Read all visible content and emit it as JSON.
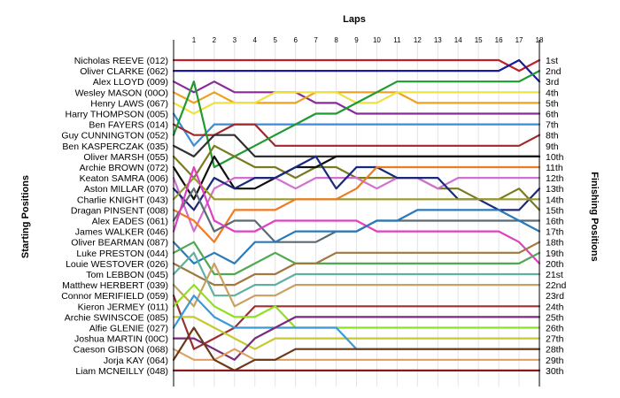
{
  "chart_data": {
    "type": "line",
    "title": "",
    "xlabel": "Laps",
    "ylabel_left": "Starting Positions",
    "ylabel_right": "Finishing Positions",
    "x_ticks": [
      "1",
      "2",
      "3",
      "4",
      "5",
      "6",
      "7",
      "8",
      "9",
      "10",
      "11",
      "12",
      "13",
      "14",
      "15",
      "16",
      "17",
      "18"
    ],
    "start_labels": [
      "Nicholas REEVE (012)",
      "Oliver CLARKE (062)",
      "Alex LLOYD (009)",
      "Wesley MASON (00O)",
      "Henry LAWS (067)",
      "Harry THOMPSON (005)",
      "Ben FAYERS (014)",
      "Guy CUNNINGTON (052)",
      "Ben KASPERCZAK (035)",
      "Oliver MARSH (055)",
      "Archie BROWN (072)",
      "Keaton SAMRA (006)",
      "Aston MILLAR (070)",
      "Charlie KNIGHT (043)",
      "Dragan PINSENT (008)",
      "Alex EADES (061)",
      "James WALKER (046)",
      "Oliver BEARMAN (087)",
      "Luke PRESTON (044)",
      "Louie WESTOVER (026)",
      "Tom LEBBON (045)",
      "Matthew HERBERT (039)",
      "Connor MERIFIELD (059)",
      "Kieron JERMEY (011)",
      "Archie SWINSCOE (085)",
      "Alfie GLENIE (027)",
      "Joshua MARTIN (00C)",
      "Caeson GIBSON (068)",
      "Jorja KAY (064)",
      "Liam MCNEILLY (048)"
    ],
    "finish_labels": [
      "1st",
      "2nd",
      "3rd",
      "4th",
      "5th",
      "6th",
      "7th",
      "8th",
      "9th",
      "10th",
      "11th",
      "12th",
      "13th",
      "14th",
      "15th",
      "16th",
      "17th",
      "18th",
      "19th",
      "20th",
      "21st",
      "22nd",
      "23rd",
      "24th",
      "25th",
      "26th",
      "27th",
      "28th",
      "29th",
      "30th"
    ],
    "series": [
      {
        "color": "#c0202a",
        "positions": [
          1,
          1,
          1,
          1,
          1,
          1,
          1,
          1,
          1,
          1,
          1,
          1,
          1,
          1,
          1,
          1,
          1,
          2,
          1
        ]
      },
      {
        "color": "#1a1a9a",
        "positions": [
          2,
          2,
          2,
          2,
          2,
          2,
          2,
          2,
          2,
          2,
          2,
          2,
          2,
          2,
          2,
          2,
          2,
          1,
          3
        ]
      },
      {
        "color": "#8a2a9a",
        "positions": [
          3,
          4,
          3,
          4,
          4,
          4,
          4,
          5,
          5,
          6,
          6,
          6,
          6,
          6,
          6,
          6,
          6,
          6,
          6
        ]
      },
      {
        "color": "#f0a020",
        "positions": [
          4,
          5,
          4,
          5,
          5,
          5,
          5,
          4,
          4,
          4,
          4,
          4,
          5,
          5,
          5,
          5,
          5,
          5,
          5
        ]
      },
      {
        "color": "#f0e040",
        "positions": [
          5,
          6,
          5,
          5,
          5,
          4,
          4,
          4,
          4,
          5,
          5,
          4,
          4,
          4,
          4,
          4,
          4,
          4,
          4
        ]
      },
      {
        "color": "#3a8cd8",
        "positions": [
          6,
          9,
          7,
          7,
          7,
          7,
          7,
          7,
          7,
          7,
          7,
          7,
          7,
          7,
          7,
          7,
          7,
          7,
          7
        ]
      },
      {
        "color": "#a0282a",
        "positions": [
          7,
          8,
          8,
          7,
          7,
          9,
          9,
          9,
          9,
          9,
          9,
          9,
          9,
          9,
          9,
          9,
          9,
          9,
          8
        ]
      },
      {
        "color": "#1e9a30",
        "positions": [
          8,
          3,
          11,
          10,
          9,
          8,
          7,
          6,
          6,
          5,
          4,
          3,
          3,
          3,
          3,
          3,
          3,
          3,
          2
        ]
      },
      {
        "color": "#303030",
        "positions": [
          9,
          10,
          8,
          8,
          10,
          10,
          10,
          10,
          10,
          10,
          10,
          10,
          10,
          10,
          10,
          10,
          10,
          10,
          10
        ]
      },
      {
        "color": "#7a7a22",
        "positions": [
          10,
          12,
          9,
          10,
          11,
          11,
          12,
          11,
          11,
          12,
          12,
          12,
          12,
          13,
          13,
          14,
          14,
          13,
          15
        ]
      },
      {
        "color": "#101010",
        "positions": [
          11,
          14,
          10,
          13,
          13,
          12,
          11,
          11,
          10,
          10,
          10,
          10,
          10,
          10,
          10,
          10,
          10,
          10,
          10
        ]
      },
      {
        "color": "#d070d0",
        "positions": [
          12,
          17,
          13,
          12,
          12,
          12,
          13,
          12,
          12,
          12,
          13,
          12,
          12,
          13,
          12,
          12,
          12,
          12,
          12
        ]
      },
      {
        "color": "#1a2a7a",
        "positions": [
          13,
          15,
          12,
          13,
          12,
          12,
          11,
          10,
          13,
          11,
          11,
          12,
          12,
          12,
          14,
          14,
          15,
          15,
          13
        ]
      },
      {
        "color": "#9a9a2a",
        "positions": [
          14,
          12,
          14,
          14,
          14,
          14,
          14,
          14,
          14,
          14,
          14,
          14,
          14,
          14,
          14,
          14,
          14,
          14,
          14
        ]
      },
      {
        "color": "#f07a20",
        "positions": [
          15,
          16,
          18,
          15,
          15,
          15,
          14,
          14,
          14,
          13,
          11,
          11,
          11,
          11,
          11,
          11,
          11,
          11,
          11
        ]
      },
      {
        "color": "#5a6a70",
        "positions": [
          16,
          13,
          17,
          16,
          16,
          18,
          18,
          18,
          17,
          17,
          16,
          16,
          16,
          16,
          16,
          16,
          16,
          16,
          16
        ]
      },
      {
        "color": "#e040c0",
        "positions": [
          17,
          11,
          16,
          17,
          17,
          16,
          16,
          16,
          16,
          16,
          17,
          17,
          17,
          17,
          17,
          17,
          17,
          18,
          20
        ]
      },
      {
        "color": "#2a7aba",
        "positions": [
          18,
          20,
          19,
          20,
          18,
          18,
          17,
          17,
          17,
          17,
          16,
          16,
          15,
          15,
          15,
          15,
          15,
          16,
          17
        ]
      },
      {
        "color": "#50a850",
        "positions": [
          19,
          18,
          21,
          21,
          20,
          19,
          20,
          20,
          20,
          20,
          20,
          20,
          20,
          20,
          20,
          20,
          20,
          20,
          19
        ]
      },
      {
        "color": "#a07840",
        "positions": [
          20,
          21,
          22,
          22,
          21,
          21,
          20,
          20,
          19,
          19,
          19,
          19,
          19,
          19,
          19,
          19,
          19,
          19,
          18
        ]
      },
      {
        "color": "#60b0a0",
        "positions": [
          21,
          19,
          23,
          23,
          22,
          22,
          21,
          21,
          21,
          21,
          21,
          21,
          21,
          21,
          21,
          21,
          21,
          21,
          21
        ]
      },
      {
        "color": "#c8a060",
        "positions": [
          22,
          24,
          20,
          24,
          23,
          23,
          22,
          22,
          22,
          22,
          22,
          22,
          22,
          22,
          22,
          22,
          22,
          22,
          22
        ]
      },
      {
        "color": "#9a3030",
        "positions": [
          23,
          28,
          27,
          26,
          24,
          24,
          24,
          24,
          24,
          24,
          24,
          24,
          24,
          24,
          24,
          24,
          24,
          24,
          24
        ]
      },
      {
        "color": "#90e020",
        "positions": [
          24,
          22,
          24,
          25,
          25,
          24,
          26,
          26,
          26,
          26,
          26,
          26,
          26,
          26,
          26,
          26,
          26,
          26,
          26
        ]
      },
      {
        "color": "#c8c830",
        "positions": [
          25,
          25,
          26,
          27,
          28,
          27,
          27,
          27,
          27,
          27,
          27,
          27,
          27,
          27,
          27,
          27,
          27,
          27,
          27
        ]
      },
      {
        "color": "#3a9ad8",
        "positions": [
          26,
          23,
          25,
          26,
          26,
          26,
          26,
          26,
          26,
          28,
          28,
          28,
          28,
          28,
          28,
          28,
          28,
          28,
          28
        ]
      },
      {
        "color": "#7a2a7a",
        "positions": [
          27,
          27,
          28,
          29,
          27,
          26,
          25,
          25,
          25,
          25,
          25,
          25,
          25,
          25,
          25,
          25,
          25,
          25,
          25
        ]
      },
      {
        "color": "#e0a060",
        "positions": [
          28,
          29,
          29,
          28,
          29,
          29,
          29,
          29,
          29,
          29,
          29,
          29,
          29,
          29,
          29,
          29,
          29,
          29,
          29
        ]
      },
      {
        "color": "#6a3a1a",
        "positions": [
          29,
          26,
          29,
          30,
          29,
          29,
          28,
          28,
          28,
          28,
          28,
          28,
          28,
          28,
          28,
          28,
          28,
          28,
          28
        ]
      },
      {
        "color": "#8a1a1a",
        "positions": [
          30,
          30,
          30,
          30,
          30,
          30,
          30,
          30,
          30,
          30,
          30,
          30,
          30,
          30,
          30,
          30,
          30,
          30,
          30
        ]
      }
    ]
  }
}
